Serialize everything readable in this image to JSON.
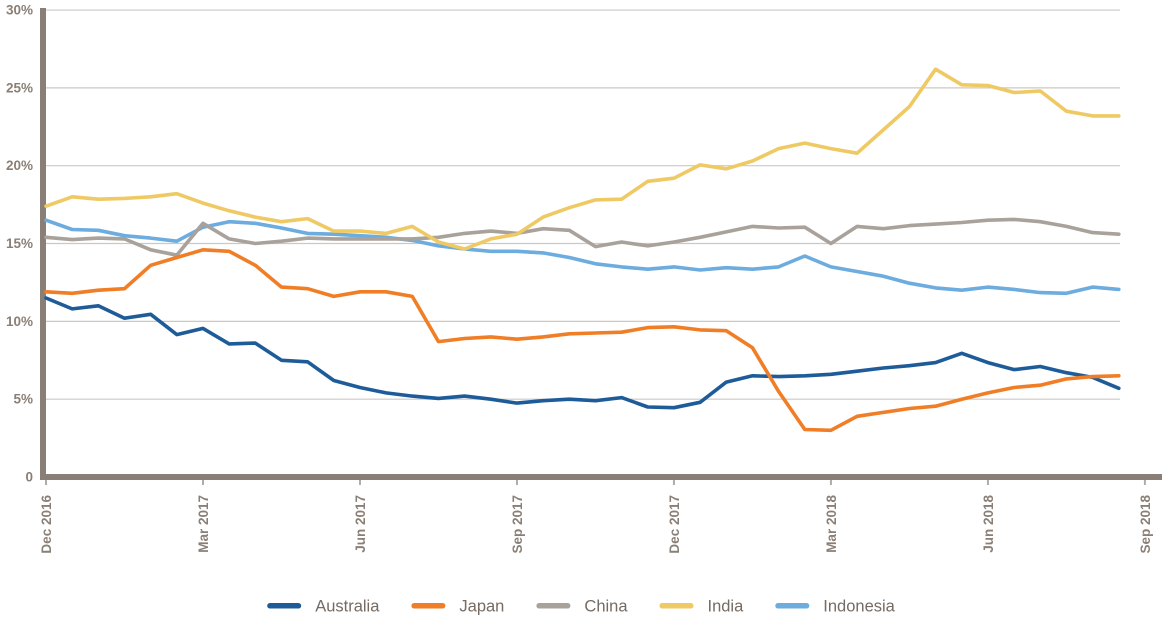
{
  "chart_data": {
    "type": "line",
    "title": "",
    "x_axis": {
      "unit": "months since Dec 2016",
      "ticks": [
        {
          "m": 0,
          "label": "Dec 2016"
        },
        {
          "m": 3,
          "label": "Mar 2017"
        },
        {
          "m": 6,
          "label": "Jun 2017"
        },
        {
          "m": 9,
          "label": "Sep 2017"
        },
        {
          "m": 12,
          "label": "Dec 2017"
        },
        {
          "m": 15,
          "label": "Mar 2018"
        },
        {
          "m": 18,
          "label": "Jun 2018"
        },
        {
          "m": 21,
          "label": "Sep 2018"
        }
      ]
    },
    "y_axis": {
      "range": [
        0,
        30
      ],
      "ticks": [
        {
          "v": 30,
          "label": "30%"
        },
        {
          "v": 25,
          "label": "25%"
        },
        {
          "v": 20,
          "label": "20%"
        },
        {
          "v": 15,
          "label": "15%"
        },
        {
          "v": 10,
          "label": "10%"
        },
        {
          "v": 5,
          "label": "5%"
        },
        {
          "v": 0,
          "label": "0"
        }
      ]
    },
    "grid": true,
    "legend_position": "bottom",
    "x_months": [
      0,
      0.5,
      1,
      1.5,
      2,
      2.5,
      3,
      3.5,
      4,
      4.5,
      5,
      5.5,
      6,
      6.5,
      7,
      7.5,
      8,
      8.5,
      9,
      9.5,
      10,
      10.5,
      11,
      11.5,
      12,
      12.5,
      13,
      13.5,
      14,
      14.5,
      15,
      15.5,
      16,
      16.5,
      17,
      17.5,
      18,
      18.5,
      19,
      19.5,
      20,
      20.5
    ],
    "series": [
      {
        "name": "Australia",
        "color": "#1E5C99",
        "values": [
          11.5,
          10.8,
          11.0,
          10.2,
          10.45,
          9.15,
          9.55,
          8.55,
          8.6,
          7.5,
          7.4,
          6.2,
          5.75,
          5.4,
          5.2,
          5.05,
          5.2,
          5.0,
          4.75,
          4.9,
          5.0,
          4.9,
          5.1,
          4.5,
          4.45,
          4.8,
          6.1,
          6.5,
          6.45,
          6.5,
          6.6,
          6.8,
          7.0,
          7.15,
          7.35,
          7.95,
          7.35,
          6.9,
          7.1,
          6.7,
          6.4,
          5.7
        ]
      },
      {
        "name": "Japan",
        "color": "#F07E26",
        "values": [
          11.9,
          11.8,
          12.0,
          12.1,
          13.6,
          14.1,
          14.6,
          14.5,
          13.6,
          12.2,
          12.1,
          11.6,
          11.9,
          11.9,
          11.6,
          8.7,
          8.9,
          9.0,
          8.85,
          9.0,
          9.2,
          9.25,
          9.3,
          9.6,
          9.65,
          9.45,
          9.4,
          8.3,
          5.5,
          3.05,
          3.0,
          3.9,
          4.15,
          4.4,
          4.55,
          5.0,
          5.4,
          5.75,
          5.9,
          6.3,
          6.45,
          6.5
        ]
      },
      {
        "name": "China",
        "color": "#A9A29B",
        "values": [
          15.4,
          15.25,
          15.35,
          15.3,
          14.6,
          14.25,
          16.3,
          15.3,
          15.0,
          15.15,
          15.35,
          15.3,
          15.3,
          15.3,
          15.3,
          15.4,
          15.65,
          15.8,
          15.65,
          15.95,
          15.85,
          14.8,
          15.1,
          14.85,
          15.1,
          15.4,
          15.75,
          16.1,
          16.0,
          16.05,
          15.0,
          16.1,
          15.95,
          16.15,
          16.25,
          16.35,
          16.5,
          16.55,
          16.4,
          16.1,
          15.7,
          15.6
        ]
      },
      {
        "name": "India",
        "color": "#EFC964",
        "values": [
          17.4,
          18.0,
          17.85,
          17.9,
          18.0,
          18.2,
          17.6,
          17.1,
          16.7,
          16.4,
          16.6,
          15.8,
          15.8,
          15.65,
          16.1,
          15.1,
          14.65,
          15.3,
          15.6,
          16.7,
          17.3,
          17.8,
          17.85,
          19.0,
          19.2,
          20.05,
          19.8,
          20.3,
          21.1,
          21.45,
          21.1,
          20.8,
          22.3,
          23.8,
          26.2,
          25.2,
          25.15,
          24.7,
          24.8,
          23.5,
          23.2,
          23.2
        ]
      },
      {
        "name": "Indonesia",
        "color": "#6CACDE",
        "values": [
          16.5,
          15.9,
          15.85,
          15.5,
          15.35,
          15.15,
          16.05,
          16.4,
          16.3,
          16.0,
          15.65,
          15.6,
          15.5,
          15.4,
          15.2,
          14.85,
          14.65,
          14.5,
          14.5,
          14.4,
          14.1,
          13.7,
          13.5,
          13.35,
          13.5,
          13.3,
          13.45,
          13.35,
          13.5,
          14.2,
          13.5,
          13.2,
          12.9,
          12.45,
          12.15,
          12.0,
          12.2,
          12.05,
          11.85,
          11.8,
          12.2,
          12.05
        ]
      }
    ]
  },
  "styles": {
    "background": "#FFFFFF",
    "axis_color": "#8A7F76",
    "grid_color": "#CDC8C3",
    "tick_color": "#B3ACA4",
    "axis_label_color": "#8A7F76",
    "legend_text_color": "#756B62"
  }
}
